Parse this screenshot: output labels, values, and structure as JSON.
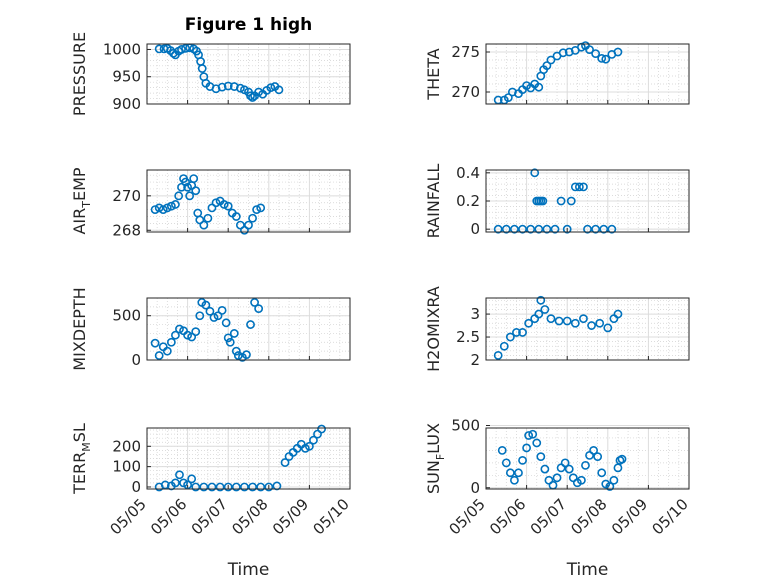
{
  "chart_data": {
    "type": "scatter",
    "title": "Figure 1 high",
    "marker_color": "#0072BD",
    "grid": true,
    "minor_grid": true,
    "x_axis": {
      "label": "Time",
      "range_days": [
        "05/05",
        "05/10"
      ],
      "ticks": [
        "05/05",
        "05/06",
        "05/07",
        "05/08",
        "05/09",
        "05/10"
      ]
    },
    "panels": [
      {
        "id": "pressure",
        "ylabel": "PRESSURE",
        "ylim": [
          900,
          1010
        ],
        "yticks": [
          900,
          950,
          1000
        ],
        "ytick_labels": [
          "900",
          "950",
          "1000"
        ],
        "points": [
          [
            0.3,
            1001
          ],
          [
            0.42,
            1001
          ],
          [
            0.5,
            1002
          ],
          [
            0.58,
            998
          ],
          [
            0.65,
            993
          ],
          [
            0.7,
            990
          ],
          [
            0.78,
            997
          ],
          [
            0.85,
            1000
          ],
          [
            0.95,
            1002
          ],
          [
            1.05,
            1003
          ],
          [
            1.15,
            1001
          ],
          [
            1.22,
            997
          ],
          [
            1.27,
            990
          ],
          [
            1.32,
            978
          ],
          [
            1.36,
            965
          ],
          [
            1.4,
            950
          ],
          [
            1.45,
            938
          ],
          [
            1.55,
            932
          ],
          [
            1.7,
            928
          ],
          [
            1.85,
            931
          ],
          [
            2.0,
            933
          ],
          [
            2.15,
            932
          ],
          [
            2.3,
            929
          ],
          [
            2.4,
            926
          ],
          [
            2.5,
            922
          ],
          [
            2.55,
            915
          ],
          [
            2.6,
            912
          ],
          [
            2.65,
            915
          ],
          [
            2.75,
            922
          ],
          [
            2.85,
            918
          ],
          [
            2.95,
            925
          ],
          [
            3.05,
            930
          ],
          [
            3.15,
            932
          ],
          [
            3.25,
            926
          ]
        ]
      },
      {
        "id": "theta",
        "ylabel": "THETA",
        "ylim": [
          268.5,
          276
        ],
        "yticks": [
          270,
          275
        ],
        "ytick_labels": [
          "270",
          "275"
        ],
        "points": [
          [
            0.3,
            269
          ],
          [
            0.45,
            269
          ],
          [
            0.55,
            269.3
          ],
          [
            0.65,
            270
          ],
          [
            0.8,
            269.8
          ],
          [
            0.9,
            270.3
          ],
          [
            1.0,
            270.8
          ],
          [
            1.1,
            270.5
          ],
          [
            1.2,
            271
          ],
          [
            1.3,
            270.6
          ],
          [
            1.35,
            272
          ],
          [
            1.42,
            272.8
          ],
          [
            1.5,
            273.3
          ],
          [
            1.6,
            274
          ],
          [
            1.75,
            274.5
          ],
          [
            1.9,
            274.9
          ],
          [
            2.05,
            275
          ],
          [
            2.2,
            275.2
          ],
          [
            2.35,
            275.6
          ],
          [
            2.45,
            275.8
          ],
          [
            2.55,
            275.3
          ],
          [
            2.7,
            274.8
          ],
          [
            2.85,
            274.2
          ],
          [
            2.95,
            274.1
          ],
          [
            3.1,
            274.7
          ],
          [
            3.25,
            275
          ]
        ]
      },
      {
        "id": "air_temp",
        "ylabel": "AIR",
        "ylabel_sub": "T",
        "ylabel_rest": "EMP",
        "ylim": [
          267.9,
          271.5
        ],
        "yticks": [
          268,
          270
        ],
        "ytick_labels": [
          "268",
          "270"
        ],
        "points": [
          [
            0.2,
            269.2
          ],
          [
            0.3,
            269.3
          ],
          [
            0.4,
            269.2
          ],
          [
            0.5,
            269.3
          ],
          [
            0.6,
            269.4
          ],
          [
            0.7,
            269.5
          ],
          [
            0.78,
            270.0
          ],
          [
            0.85,
            270.5
          ],
          [
            0.9,
            271.0
          ],
          [
            0.95,
            270.8
          ],
          [
            1.0,
            270.5
          ],
          [
            1.05,
            270.0
          ],
          [
            1.1,
            270.6
          ],
          [
            1.15,
            271.0
          ],
          [
            1.2,
            270.3
          ],
          [
            1.25,
            269.0
          ],
          [
            1.3,
            268.6
          ],
          [
            1.4,
            268.3
          ],
          [
            1.5,
            268.7
          ],
          [
            1.6,
            269.3
          ],
          [
            1.7,
            269.6
          ],
          [
            1.8,
            269.7
          ],
          [
            1.9,
            269.5
          ],
          [
            2.0,
            269.4
          ],
          [
            2.1,
            269.0
          ],
          [
            2.2,
            268.8
          ],
          [
            2.3,
            268.3
          ],
          [
            2.4,
            268.0
          ],
          [
            2.5,
            268.3
          ],
          [
            2.6,
            268.7
          ],
          [
            2.7,
            269.2
          ],
          [
            2.8,
            269.3
          ]
        ]
      },
      {
        "id": "rainfall",
        "ylabel": "RAINFALL",
        "ylim": [
          -0.02,
          0.42
        ],
        "yticks": [
          0,
          0.2,
          0.4
        ],
        "ytick_labels": [
          "0",
          "0.2",
          "0.4"
        ],
        "points": [
          [
            0.3,
            0
          ],
          [
            0.5,
            0
          ],
          [
            0.7,
            0
          ],
          [
            0.9,
            0
          ],
          [
            1.1,
            0
          ],
          [
            1.2,
            0.4
          ],
          [
            1.25,
            0.2
          ],
          [
            1.3,
            0.2
          ],
          [
            1.35,
            0.2
          ],
          [
            1.4,
            0.2
          ],
          [
            1.3,
            0
          ],
          [
            1.5,
            0
          ],
          [
            1.7,
            0
          ],
          [
            1.85,
            0.2
          ],
          [
            2.0,
            0
          ],
          [
            2.1,
            0.2
          ],
          [
            2.2,
            0.3
          ],
          [
            2.3,
            0.3
          ],
          [
            2.4,
            0.3
          ],
          [
            2.5,
            0
          ],
          [
            2.7,
            0
          ],
          [
            2.9,
            0
          ],
          [
            3.1,
            0
          ]
        ]
      },
      {
        "id": "mixdepth",
        "ylabel": "MIXDEPTH",
        "ylim": [
          0,
          700
        ],
        "yticks": [
          0,
          500
        ],
        "ytick_labels": [
          "0",
          "500"
        ],
        "points": [
          [
            0.2,
            190
          ],
          [
            0.3,
            50
          ],
          [
            0.4,
            150
          ],
          [
            0.5,
            100
          ],
          [
            0.6,
            200
          ],
          [
            0.7,
            280
          ],
          [
            0.8,
            350
          ],
          [
            0.9,
            330
          ],
          [
            1.0,
            280
          ],
          [
            1.1,
            260
          ],
          [
            1.2,
            320
          ],
          [
            1.3,
            500
          ],
          [
            1.35,
            650
          ],
          [
            1.45,
            620
          ],
          [
            1.55,
            550
          ],
          [
            1.65,
            480
          ],
          [
            1.75,
            500
          ],
          [
            1.85,
            560
          ],
          [
            1.95,
            420
          ],
          [
            2.0,
            250
          ],
          [
            2.05,
            200
          ],
          [
            2.15,
            300
          ],
          [
            2.2,
            100
          ],
          [
            2.25,
            50
          ],
          [
            2.35,
            30
          ],
          [
            2.45,
            60
          ],
          [
            2.55,
            400
          ],
          [
            2.65,
            650
          ],
          [
            2.75,
            580
          ]
        ]
      },
      {
        "id": "h2omixra",
        "ylabel": "H2OMIXRA",
        "ylim": [
          2,
          3.35
        ],
        "yticks": [
          2,
          2.5,
          3
        ],
        "ytick_labels": [
          "2",
          "2.5",
          "3"
        ],
        "points": [
          [
            0.3,
            2.1
          ],
          [
            0.45,
            2.3
          ],
          [
            0.6,
            2.5
          ],
          [
            0.75,
            2.6
          ],
          [
            0.9,
            2.6
          ],
          [
            1.05,
            2.8
          ],
          [
            1.2,
            2.9
          ],
          [
            1.3,
            3.0
          ],
          [
            1.35,
            3.3
          ],
          [
            1.45,
            3.1
          ],
          [
            1.6,
            2.9
          ],
          [
            1.8,
            2.85
          ],
          [
            2.0,
            2.85
          ],
          [
            2.2,
            2.8
          ],
          [
            2.4,
            2.9
          ],
          [
            2.6,
            2.75
          ],
          [
            2.8,
            2.8
          ],
          [
            3.0,
            2.7
          ],
          [
            3.15,
            2.9
          ],
          [
            3.25,
            3.0
          ]
        ]
      },
      {
        "id": "terr_msl",
        "ylabel": "TERR",
        "ylabel_sub": "M",
        "ylabel_rest": "SL",
        "ylim": [
          -10,
          290
        ],
        "yticks": [
          0,
          100,
          200
        ],
        "ytick_labels": [
          "0",
          "100",
          "200"
        ],
        "points": [
          [
            0.3,
            0
          ],
          [
            0.45,
            10
          ],
          [
            0.6,
            5
          ],
          [
            0.7,
            20
          ],
          [
            0.8,
            60
          ],
          [
            0.9,
            20
          ],
          [
            1.0,
            10
          ],
          [
            1.1,
            40
          ],
          [
            1.2,
            0
          ],
          [
            1.4,
            0
          ],
          [
            1.6,
            0
          ],
          [
            1.8,
            0
          ],
          [
            2.0,
            0
          ],
          [
            2.2,
            0
          ],
          [
            2.4,
            0
          ],
          [
            2.6,
            0
          ],
          [
            2.8,
            0
          ],
          [
            3.0,
            0
          ],
          [
            3.2,
            5
          ],
          [
            3.4,
            120
          ],
          [
            3.5,
            150
          ],
          [
            3.6,
            170
          ],
          [
            3.7,
            190
          ],
          [
            3.8,
            210
          ],
          [
            3.9,
            190
          ],
          [
            4.0,
            200
          ],
          [
            4.1,
            230
          ],
          [
            4.2,
            260
          ],
          [
            4.3,
            285
          ]
        ]
      },
      {
        "id": "sun_flux",
        "ylabel": "SUN",
        "ylabel_sub": "F",
        "ylabel_rest": "LUX",
        "ylim": [
          -10,
          480
        ],
        "yticks": [
          0,
          500
        ],
        "ytick_labels": [
          "0",
          "500"
        ],
        "points": [
          [
            0.4,
            300
          ],
          [
            0.5,
            200
          ],
          [
            0.6,
            120
          ],
          [
            0.7,
            60
          ],
          [
            0.8,
            120
          ],
          [
            0.9,
            220
          ],
          [
            1.0,
            320
          ],
          [
            1.05,
            420
          ],
          [
            1.15,
            430
          ],
          [
            1.25,
            360
          ],
          [
            1.35,
            250
          ],
          [
            1.45,
            150
          ],
          [
            1.55,
            60
          ],
          [
            1.65,
            20
          ],
          [
            1.75,
            80
          ],
          [
            1.85,
            160
          ],
          [
            1.95,
            200
          ],
          [
            2.05,
            150
          ],
          [
            2.15,
            80
          ],
          [
            2.25,
            40
          ],
          [
            2.35,
            60
          ],
          [
            2.45,
            180
          ],
          [
            2.55,
            260
          ],
          [
            2.65,
            300
          ],
          [
            2.75,
            250
          ],
          [
            2.85,
            120
          ],
          [
            2.95,
            30
          ],
          [
            3.05,
            10
          ],
          [
            3.15,
            60
          ],
          [
            3.25,
            160
          ],
          [
            3.3,
            220
          ],
          [
            3.35,
            230
          ]
        ]
      }
    ]
  }
}
